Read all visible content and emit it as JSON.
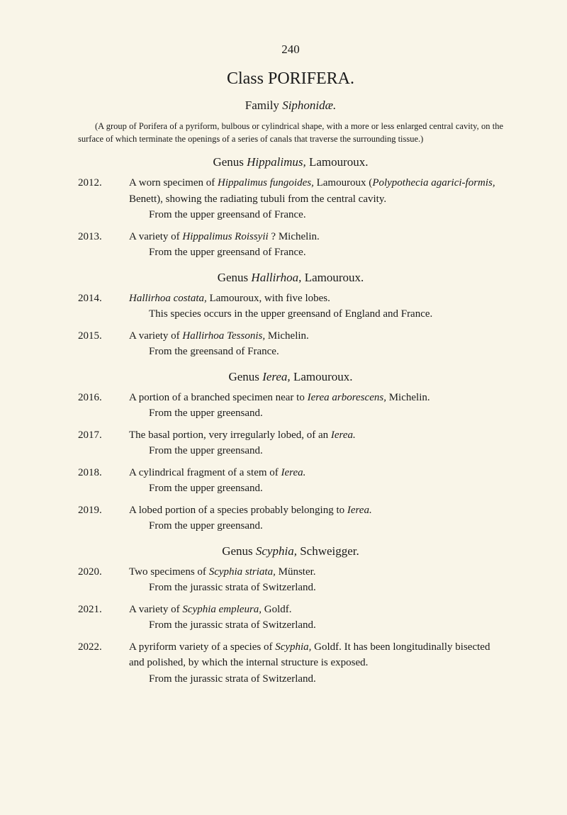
{
  "pageNumber": "240",
  "classTitle": "Class PORIFERA.",
  "family": {
    "label": "Family ",
    "name": "Siphonidæ.",
    "description": "(A group of Porifera of a pyriform, bulbous or cylindrical shape, with a more or less enlarged central cavity, on the surface of which terminate the openings of a series of canals that traverse the surrounding tissue.)"
  },
  "genera": [
    {
      "label": "Genus ",
      "name": "Hippalimus,",
      "author": " Lamouroux.",
      "entries": [
        {
          "num": "2012.",
          "main_pre": "A worn specimen of ",
          "main_ital1": "Hippalimus fungoides,",
          "main_mid": " Lamouroux (",
          "main_ital2": "Polypothecia agarici-formis,",
          "main_post": " Benett), showing the radiating tubuli from the central cavity.",
          "sub": "From the upper greensand of France."
        },
        {
          "num": "2013.",
          "main_pre": "A variety of ",
          "main_ital1": "Hippalimus Roissyii",
          "main_post": " ? Michelin.",
          "sub": "From the upper greensand of France."
        }
      ]
    },
    {
      "label": "Genus ",
      "name": "Hallirhoa,",
      "author": " Lamouroux.",
      "entries": [
        {
          "num": "2014.",
          "main_ital1": "Hallirhoa costata,",
          "main_post": " Lamouroux, with five lobes.",
          "sub": "This species occurs in the upper greensand of England and France."
        },
        {
          "num": "2015.",
          "main_pre": "A variety of ",
          "main_ital1": "Hallirhoa Tessonis,",
          "main_post": " Michelin.",
          "sub": "From the greensand of France."
        }
      ]
    },
    {
      "label": "Genus ",
      "name": "Ierea,",
      "author": " Lamouroux.",
      "entries": [
        {
          "num": "2016.",
          "main_pre": "A portion of a branched specimen near to ",
          "main_ital1": "Ierea arborescens,",
          "main_post": " Michelin.",
          "sub": "From the upper greensand."
        },
        {
          "num": "2017.",
          "main_pre": "The basal portion, very irregularly lobed, of an ",
          "main_ital1": "Ierea.",
          "sub": "From the upper greensand."
        },
        {
          "num": "2018.",
          "main_pre": "A cylindrical fragment of a stem of ",
          "main_ital1": "Ierea.",
          "sub": "From the upper greensand."
        },
        {
          "num": "2019.",
          "main_pre": "A lobed portion of a species probably belonging to ",
          "main_ital1": "Ierea.",
          "sub": "From the upper greensand."
        }
      ]
    },
    {
      "label": "Genus ",
      "name": "Scyphia,",
      "author": " Schweigger.",
      "entries": [
        {
          "num": "2020.",
          "main_pre": "Two specimens of ",
          "main_ital1": "Scyphia striata,",
          "main_post": " Münster.",
          "sub": "From the jurassic strata of Switzerland."
        },
        {
          "num": "2021.",
          "main_pre": "A variety of ",
          "main_ital1": "Scyphia empleura,",
          "main_post": " Goldf.",
          "sub": "From the jurassic strata of Switzerland."
        },
        {
          "num": "2022.",
          "main_pre": "A pyriform variety of a species of ",
          "main_ital1": "Scyphia,",
          "main_post": " Goldf.   It has been longitudinally bisected and polished, by which the internal structure is exposed.",
          "sub": "From the jurassic strata of Switzerland."
        }
      ]
    }
  ]
}
